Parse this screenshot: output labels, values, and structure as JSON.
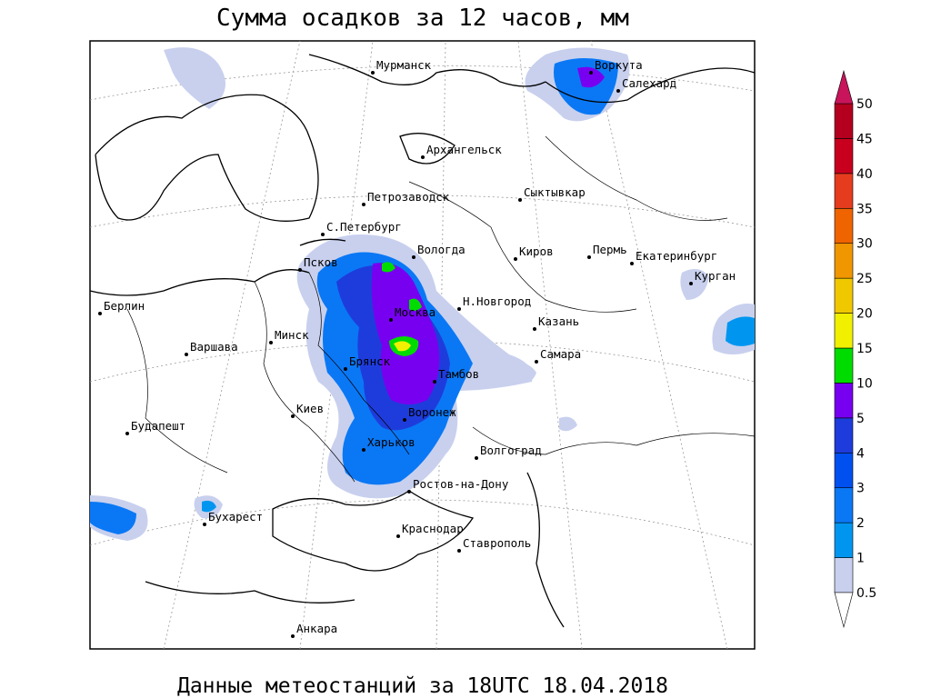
{
  "header": {
    "title": "Сумма осадков за 12 часов, мм"
  },
  "cities": [
    "Мурманск",
    "Воркута",
    "Салехард",
    "Архангельск",
    "Петрозаводск",
    "Сыктывкар",
    "С.Петербург",
    "Вологда",
    "Псков",
    "Киров",
    "Пермь",
    "Екатеринбург",
    "Курган",
    "Берлин",
    "Н.Новгород",
    "Москва",
    "Казань",
    "Минск",
    "Варшава",
    "Самара",
    "Брянск",
    "Тамбов",
    "Киев",
    "Воронеж",
    "Будапешт",
    "Харьков",
    "Волгоград",
    "Ростов-на-Дону",
    "Бухарест",
    "Краснодар",
    "Ставрополь",
    "Анкара"
  ],
  "legend": {
    "labels": [
      "0.5",
      "1",
      "2",
      "3",
      "4",
      "5",
      "10",
      "15",
      "20",
      "25",
      "30",
      "35",
      "40",
      "45",
      "50"
    ],
    "colors": [
      "#c8d0ee",
      "#0096f0",
      "#0a78f5",
      "#0050f0",
      "#1e3cdc",
      "#7800f0",
      "#00dc00",
      "#f0f000",
      "#f0c800",
      "#f09600",
      "#f06400",
      "#e63c1e",
      "#c8001e",
      "#b4001e"
    ],
    "over_color": "#c8145a"
  },
  "footer": {
    "caption": "Данные метеостанций за 18UTC 18.04.2018"
  }
}
